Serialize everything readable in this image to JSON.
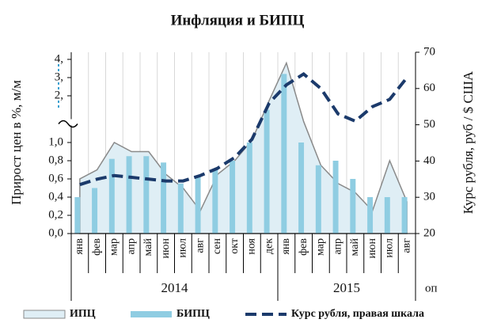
{
  "chart_data": {
    "type": "combo",
    "title": "Инфляция и БИПЦ",
    "y_label": "Прирост цен в %, м/м",
    "y2_label": "Курс рубля, руб / $ США",
    "categories": [
      "янв",
      "фев",
      "мар",
      "апр",
      "май",
      "июн",
      "июл",
      "авг",
      "сен",
      "окт",
      "ноя",
      "дек",
      "янв",
      "фев",
      "мар",
      "апр",
      "май",
      "июн",
      "июл",
      "авг"
    ],
    "x_groups": [
      "2014",
      "2015"
    ],
    "annotation": "оп",
    "series": [
      {
        "name": "ИПЦ",
        "type": "area",
        "color": "#dfeef5",
        "values": [
          0.6,
          0.7,
          1.0,
          0.9,
          0.9,
          0.65,
          0.5,
          0.25,
          0.65,
          0.8,
          1.05,
          1.9,
          3.8,
          1.45,
          0.75,
          0.55,
          0.45,
          0.25,
          0.8,
          0.35
        ]
      },
      {
        "name": "БИПЦ",
        "type": "bar",
        "color": "#8fcde2",
        "values": [
          0.4,
          0.5,
          0.82,
          0.85,
          0.85,
          0.78,
          0.55,
          0.62,
          0.7,
          0.8,
          1.0,
          1.7,
          3.2,
          1.0,
          0.75,
          0.8,
          0.6,
          0.4,
          0.4,
          0.4
        ]
      },
      {
        "name": "Курс рубля, правая шкала",
        "type": "line",
        "axis": "y2",
        "color": "#1b3a6b",
        "values": [
          33.5,
          35,
          36,
          35.5,
          35,
          34.5,
          34.5,
          36,
          38,
          41,
          46,
          56,
          61,
          64,
          60,
          53,
          51,
          55,
          57,
          63
        ]
      }
    ],
    "ylim": [
      0,
      4
    ],
    "yticks": [
      {
        "value": 0,
        "label": "0,0"
      },
      {
        "value": 0.2,
        "label": "0,2"
      },
      {
        "value": 0.4,
        "label": "0,4"
      },
      {
        "value": 0.6,
        "label": "0,6"
      },
      {
        "value": 0.8,
        "label": "0,8"
      },
      {
        "value": 1,
        "label": "1,0"
      },
      {
        "value": 2,
        "label": "2,"
      },
      {
        "value": 3,
        "label": "3,"
      },
      {
        "value": 4,
        "label": "4,"
      }
    ],
    "y2lim": [
      20,
      70
    ],
    "y2ticks": [
      20,
      30,
      40,
      50,
      60,
      70
    ]
  }
}
